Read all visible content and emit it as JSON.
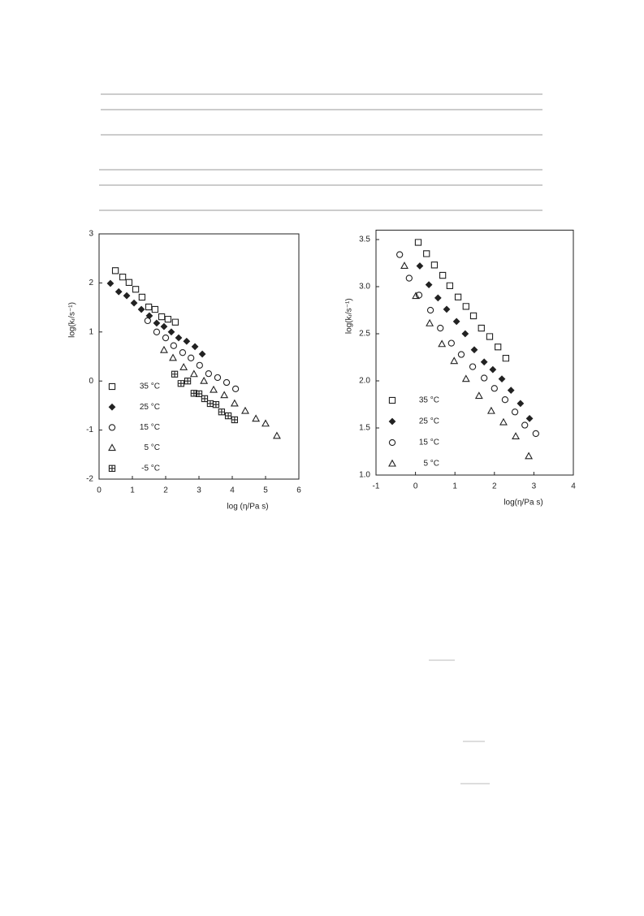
{
  "chart_data": [
    {
      "type": "scatter",
      "xlabel": "log (η/Pa s)",
      "ylabel": "log(kᵣ/s⁻¹)",
      "xlim": [
        0,
        6
      ],
      "ylim": [
        -2,
        3
      ],
      "xticks": [
        0,
        1,
        2,
        3,
        4,
        5,
        6
      ],
      "yticks": [
        -2,
        -1,
        0,
        1,
        2,
        3
      ],
      "legend": "lower left",
      "color": "#222222",
      "series": [
        {
          "name": "35 °C",
          "marker": "square",
          "x": [
            0.49,
            0.71,
            0.9,
            1.1,
            1.29,
            1.49,
            1.68,
            1.88,
            2.07,
            2.29
          ],
          "values": [
            2.25,
            2.12,
            2.01,
            1.87,
            1.71,
            1.51,
            1.46,
            1.31,
            1.26,
            1.2
          ]
        },
        {
          "name": "25 °C",
          "marker": "diamond",
          "x": [
            0.34,
            0.59,
            0.83,
            1.05,
            1.27,
            1.51,
            1.73,
            1.95,
            2.17,
            2.39,
            2.63,
            2.88,
            3.1
          ],
          "values": [
            1.99,
            1.82,
            1.74,
            1.59,
            1.46,
            1.33,
            1.18,
            1.11,
            1.0,
            0.88,
            0.81,
            0.7,
            0.55
          ]
        },
        {
          "name": "15 °C",
          "marker": "circle",
          "x": [
            1.46,
            1.73,
            2.0,
            2.24,
            2.51,
            2.76,
            3.02,
            3.29,
            3.56,
            3.83,
            4.1
          ],
          "values": [
            1.23,
            1.0,
            0.88,
            0.72,
            0.58,
            0.47,
            0.32,
            0.15,
            0.07,
            -0.03,
            -0.16
          ]
        },
        {
          "name": "5 °C",
          "marker": "triangle",
          "x": [
            1.95,
            2.22,
            2.54,
            2.85,
            3.15,
            3.44,
            3.76,
            4.07,
            4.39,
            4.71,
            5.0,
            5.34
          ],
          "values": [
            0.63,
            0.47,
            0.28,
            0.14,
            0.0,
            -0.18,
            -0.29,
            -0.46,
            -0.61,
            -0.77,
            -0.87,
            -1.12
          ]
        },
        {
          "name": "-5 °C",
          "marker": "crossed-square",
          "x": [
            2.27,
            2.46,
            2.66,
            2.85,
            3.0,
            3.17,
            3.34,
            3.51,
            3.68,
            3.88,
            4.07
          ],
          "values": [
            0.14,
            -0.05,
            0.0,
            -0.25,
            -0.26,
            -0.36,
            -0.46,
            -0.48,
            -0.63,
            -0.71,
            -0.79
          ]
        }
      ]
    },
    {
      "type": "scatter",
      "xlabel": "log(η/Pa s)",
      "ylabel": "log(kᵣ/s⁻¹)",
      "xlim": [
        -1,
        4
      ],
      "ylim": [
        1.0,
        3.6
      ],
      "xticks": [
        -1,
        0,
        1,
        2,
        3,
        4
      ],
      "yticks": [
        {
          "value": 1,
          "label": "1.0"
        },
        1.5,
        {
          "value": 2,
          "label": "2.0"
        },
        2.5,
        {
          "value": 3,
          "label": "3.0"
        },
        3.5
      ],
      "legend": "lower left",
      "color": "#222222",
      "series": [
        {
          "name": "35 °C",
          "marker": "square",
          "x": [
            0.07,
            0.28,
            0.48,
            0.69,
            0.87,
            1.08,
            1.28,
            1.47,
            1.67,
            1.88,
            2.09,
            2.29
          ],
          "values": [
            3.47,
            3.35,
            3.23,
            3.12,
            3.01,
            2.89,
            2.79,
            2.69,
            2.56,
            2.47,
            2.36,
            2.24
          ]
        },
        {
          "name": "25 °C",
          "marker": "diamond",
          "x": [
            0.11,
            0.34,
            0.57,
            0.79,
            1.04,
            1.26,
            1.49,
            1.74,
            1.96,
            2.19,
            2.42,
            2.66,
            2.89
          ],
          "values": [
            3.22,
            3.02,
            2.88,
            2.76,
            2.63,
            2.5,
            2.33,
            2.2,
            2.12,
            2.02,
            1.9,
            1.76,
            1.6
          ]
        },
        {
          "name": "15 °C",
          "marker": "circle",
          "x": [
            -0.4,
            -0.16,
            0.09,
            0.38,
            0.63,
            0.91,
            1.16,
            1.45,
            1.74,
            2.0,
            2.27,
            2.52,
            2.77,
            3.05
          ],
          "values": [
            3.34,
            3.09,
            2.91,
            2.75,
            2.56,
            2.4,
            2.28,
            2.15,
            2.03,
            1.92,
            1.8,
            1.67,
            1.53,
            1.44
          ]
        },
        {
          "name": "5 °C",
          "marker": "triangle",
          "x": [
            -0.28,
            0.01,
            0.36,
            0.67,
            0.98,
            1.28,
            1.61,
            1.92,
            2.23,
            2.54,
            2.87
          ],
          "values": [
            3.22,
            2.9,
            2.61,
            2.39,
            2.21,
            2.02,
            1.84,
            1.68,
            1.56,
            1.41,
            1.2
          ]
        }
      ]
    }
  ]
}
